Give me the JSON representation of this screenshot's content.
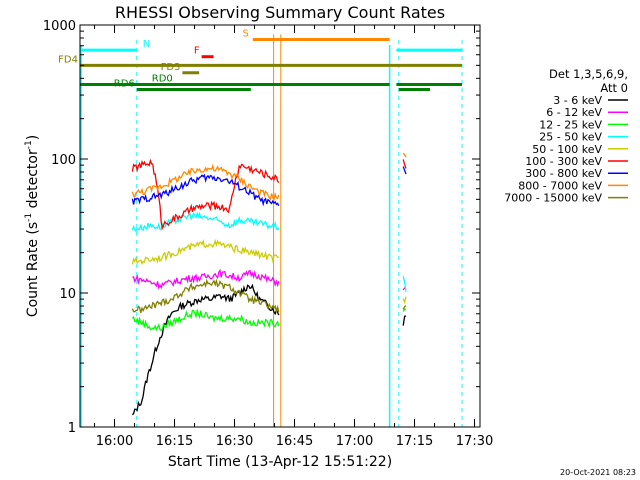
{
  "chart_data": {
    "type": "line",
    "title": "RHESSI Observing Summary Count Rates",
    "xlabel": "Start Time (13-Apr-12 15:51:22)",
    "ylabel_main": "Count Rate (s",
    "ylabel_sup1": "-1",
    "ylabel_mid": " detector",
    "ylabel_sup2": "-1",
    "ylabel_end": ")",
    "yscale": "log",
    "ylim": [
      1,
      1000
    ],
    "xlim_minutes": [
      0,
      100
    ],
    "x_ticks": [
      {
        "min": 8.63,
        "label": "16:00"
      },
      {
        "min": 23.63,
        "label": "16:15"
      },
      {
        "min": 38.63,
        "label": "16:30"
      },
      {
        "min": 53.63,
        "label": "16:45"
      },
      {
        "min": 68.63,
        "label": "17:00"
      },
      {
        "min": 83.63,
        "label": "17:15"
      },
      {
        "min": 98.63,
        "label": "17:30"
      }
    ],
    "y_ticks": [
      {
        "value": 1,
        "label": "1"
      },
      {
        "value": 10,
        "label": "10"
      },
      {
        "value": 100,
        "label": "100"
      },
      {
        "value": 1000,
        "label": "1000"
      }
    ],
    "legend_header": [
      "Det 1,3,5,6,9,",
      "Att 0"
    ],
    "legend_placement": "right",
    "series": [
      {
        "name": "3 - 6 keV",
        "color": "#000000",
        "seg1": [
          1.2,
          1.6,
          3.0,
          5.0,
          7.0,
          8.0,
          8.5,
          9.0,
          9.0,
          9.5,
          9.0,
          10.0,
          11.5,
          9.0,
          8.0,
          7.0
        ],
        "seg2": [
          6.0,
          7.0
        ]
      },
      {
        "name": "6 - 12 keV",
        "color": "#ff00ff",
        "seg1": [
          13.0,
          12.5,
          12.0,
          11.5,
          12.0,
          12.5,
          13.0,
          13.0,
          13.5,
          14.0,
          13.5,
          13.0,
          14.0,
          13.5,
          12.5,
          12.0
        ],
        "seg2": [
          10.0,
          11.0
        ]
      },
      {
        "name": "12 - 25 keV",
        "color": "#00ff00",
        "seg1": [
          6.5,
          6.0,
          5.5,
          5.5,
          6.0,
          6.5,
          7.0,
          7.0,
          6.5,
          6.5,
          6.5,
          6.5,
          6.0,
          6.0,
          6.0,
          6.0
        ],
        "seg2": [
          7.0,
          7.5
        ]
      },
      {
        "name": "25 - 50 keV",
        "color": "#00ffff",
        "seg1": [
          30.0,
          31.0,
          32.0,
          31.0,
          34.0,
          36.0,
          38.0,
          37.0,
          36.0,
          34.0,
          32.0,
          35.0,
          34.0,
          33.0,
          32.0,
          31.0
        ],
        "seg2": [
          13.0,
          10.0
        ]
      },
      {
        "name": "50 - 100 keV",
        "color": "#cccc00",
        "seg1": [
          17.0,
          17.5,
          18.0,
          18.5,
          19.5,
          21.0,
          22.0,
          23.0,
          23.5,
          23.0,
          22.0,
          21.0,
          20.0,
          19.5,
          18.5,
          18.0
        ],
        "seg2": [
          9.0,
          9.0
        ]
      },
      {
        "name": "100 - 300 keV",
        "color": "#ff0000",
        "seg1": [
          85.0,
          90.0,
          95.0,
          32.0,
          35.0,
          38.0,
          42.0,
          44.0,
          45.0,
          44.0,
          42.0,
          90.0,
          85.0,
          80.0,
          75.0,
          70.0
        ],
        "seg2": [
          100.0,
          90.0
        ]
      },
      {
        "name": "300 - 800 keV",
        "color": "#0000ff",
        "seg1": [
          48.0,
          50.0,
          52.0,
          54.0,
          58.0,
          63.0,
          68.0,
          72.0,
          73.0,
          72.0,
          68.0,
          62.0,
          56.0,
          50.0,
          47.0,
          45.0
        ],
        "seg2": [
          90.0,
          80.0
        ]
      },
      {
        "name": "800 - 7000 keV",
        "color": "#ff8800",
        "seg1": [
          55.0,
          57.0,
          60.0,
          63.0,
          68.0,
          74.0,
          80.0,
          84.0,
          85.0,
          83.0,
          78.0,
          71.0,
          63.0,
          57.0,
          53.0,
          52.0
        ],
        "seg2": [
          115.0,
          105.0
        ]
      },
      {
        "name": "7000 - 15000 keV",
        "color": "#808000",
        "seg1": [
          7.5,
          7.5,
          8.0,
          8.5,
          9.0,
          10.0,
          11.0,
          11.5,
          12.0,
          11.5,
          11.0,
          10.0,
          9.0,
          8.5,
          8.0,
          7.5
        ],
        "seg2": [
          8.0,
          8.0
        ]
      }
    ],
    "flags": [
      {
        "label": "N",
        "color": "#00ffff",
        "value": 650,
        "segments": [
          [
            0,
            14.2
          ],
          [
            79.1,
            95.5
          ]
        ]
      },
      {
        "label": "S",
        "color": "#ff8800",
        "value": 780,
        "segments": [
          [
            43.2,
            77.4
          ]
        ]
      },
      {
        "label": "F",
        "color": "#ff0000",
        "value": 580,
        "segments": [
          [
            30.4,
            33.4
          ]
        ]
      },
      {
        "label": "FD4",
        "color": "#808000",
        "value": 500,
        "segments": [
          [
            0,
            95.5
          ]
        ]
      },
      {
        "label": "FD3",
        "color": "#808000",
        "value": 440,
        "segments": [
          [
            25.6,
            29.8
          ]
        ]
      },
      {
        "label": "RD0",
        "color": "#008000",
        "value": 360,
        "segments": [
          [
            0,
            77.4
          ],
          [
            79.1,
            95.5
          ]
        ]
      },
      {
        "label": "RD6",
        "color": "#008000",
        "value": 330,
        "segments": [
          [
            14.2,
            42.7
          ],
          [
            79.7,
            87.5
          ]
        ]
      }
    ],
    "segment1_minutes": [
      13.1,
      49.7
    ],
    "segment2_minutes": [
      80.8,
      81.5
    ],
    "cyan_dashed_minutes": [
      14.2,
      79.7,
      95.5
    ],
    "cyan_solid_minutes": [
      0,
      77.4
    ],
    "orange_solid_minutes": [
      48.4,
      50.2
    ],
    "timestamp": "20-Oct-2021 08:23"
  }
}
